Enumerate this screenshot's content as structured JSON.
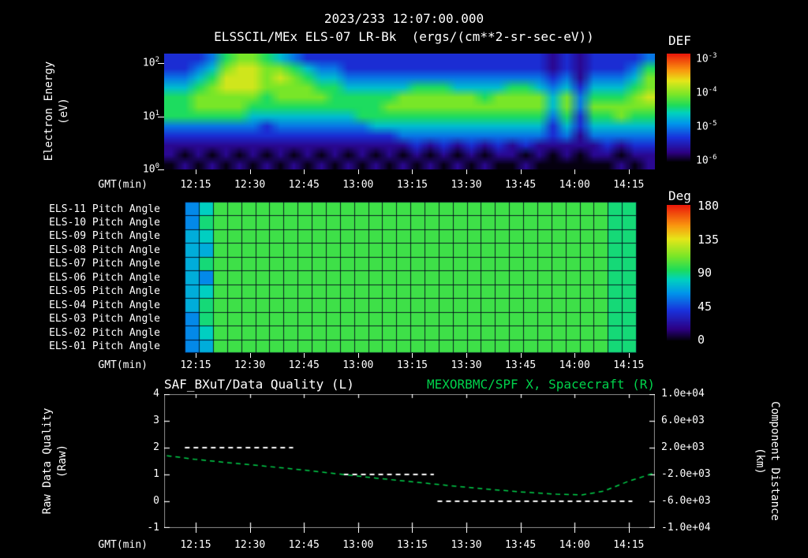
{
  "header": {
    "datetime": "2023/233 12:07:00.000",
    "title": "ELSSCIL/MEx ELS-07 LR-Bk  (ergs/(cm**2-sr-sec-eV))"
  },
  "colors": {
    "background": "#000000",
    "text": "#ffffff",
    "accent_green": "#00d24b"
  },
  "time_axis": {
    "label": "GMT(min)",
    "ticks": [
      "12:15",
      "12:30",
      "12:45",
      "13:00",
      "13:15",
      "13:30",
      "13:45",
      "14:00",
      "14:15"
    ],
    "start": "12:06",
    "end": "14:22"
  },
  "chart_data": [
    {
      "id": "electron_energy_spectrogram",
      "type": "heatmap",
      "instrument": "ELSSCIL/MEx ELS-07 LR-Bk",
      "units": "ergs/(cm**2-sr-sec-eV)",
      "ylabel_lines": [
        "Electron Energy",
        "(eV)"
      ],
      "y_scale": "log",
      "y_range_eV": [
        1,
        150
      ],
      "y_ticks": [
        {
          "base": "10",
          "exp": "2"
        },
        {
          "base": "10",
          "exp": "1"
        },
        {
          "base": "10",
          "exp": "0"
        }
      ],
      "colorbar": {
        "label": "DEF",
        "ticks": [
          {
            "base": "10",
            "exp": "-3"
          },
          {
            "base": "10",
            "exp": "-4"
          },
          {
            "base": "10",
            "exp": "-5"
          },
          {
            "base": "10",
            "exp": "-6"
          }
        ],
        "range_log10": [
          -6,
          -3
        ]
      },
      "value_encoding": "each string = one time column (12:06 to 14:22); chars run top (100 eV) to bottom (1 eV); digit 0-9 = relative log flux",
      "values": [
        "223455532110",
        "223455532101",
        "234566532110",
        "345666532101",
        "567766532110",
        "677766532101",
        "677765432110",
        "566655422101",
        "467665432110",
        "356665432101",
        "245665432110",
        "234565432101",
        "234555432110",
        "223455432101",
        "223455532110",
        "223455542101",
        "223456542110",
        "223466543101",
        "223566543210",
        "223566543101",
        "223566543210",
        "223466543101",
        "223466543210",
        "223456543101",
        "223466543210",
        "223566543110",
        "223566543201",
        "223466543110",
        "112344322100",
        "223466543110",
        "111233221100",
        "223456543110",
        "223456543210",
        "223456643101",
        "234566543210",
        "356676543211"
      ]
    },
    {
      "id": "pitch_angle_panels",
      "type": "heatmap",
      "row_labels": [
        "ELS-11 Pitch Angle",
        "ELS-10 Pitch Angle",
        "ELS-09 Pitch Angle",
        "ELS-08 Pitch Angle",
        "ELS-07 Pitch Angle",
        "ELS-06 Pitch Angle",
        "ELS-05 Pitch Angle",
        "ELS-04 Pitch Angle",
        "ELS-03 Pitch Angle",
        "ELS-02 Pitch Angle",
        "ELS-01 Pitch Angle"
      ],
      "colorbar": {
        "label": "Deg",
        "ticks": [
          "180",
          "135",
          "90",
          "45",
          "0"
        ],
        "range_deg": [
          0,
          180
        ]
      },
      "data_start": "12:12",
      "data_end": "14:17",
      "value_encoding": "char in '0123456789ABCDEFGHI' x10 = pitch angle in degrees; 32 time columns per row",
      "rows": [
        "68AAAAAAAAAAAAAAAAAAAAAAAAAAAA99",
        "69AAAAAAAAAAAAAAAAAAAAAAAAAAAA99",
        "78AAAAAAAAAAAAAAAAAAAAAAAAAAAA99",
        "77AAAAAAAAAAAAAAAAAAAAAAAAAAAA99",
        "79AAAAAAAAAAAAAAAAAAAAAAAAAAAA99",
        "76AAAAAAAAAAAAAAAAAAAAAAAAAAAA99",
        "78AAAAAAAAAAAAAAAAAAAAAAAAAAAA99",
        "79AAAAAAAAAAAAAAAAAAAAAAAAAAAA99",
        "69AAAAAAAAAAAAAAAAAAAAAAAAAAAA99",
        "68AAAAAAAAAAAAAAAAAAAAAAAAAAAA99",
        "67AAAAAAAAAAAAAAAAAAAAAAAAAAAA99"
      ]
    },
    {
      "id": "quality_and_spacecraft_distance",
      "type": "line",
      "title_left": "SAF_BXuT/Data Quality (L)",
      "title_right": "MEXORBMC/SPF X, Spacecraft (R)",
      "ylabel_left_lines": [
        "Raw Data Quality",
        "(Raw)"
      ],
      "ylabel_right_lines": [
        "Component Distance",
        "(km)"
      ],
      "yleft_ticks": [
        "4",
        "3",
        "2",
        "1",
        "0",
        "-1"
      ],
      "yleft_range": [
        -1,
        4
      ],
      "yright_ticks": [
        "1.0e+04",
        "6.0e+03",
        "2.0e+03",
        "-2.0e+03",
        "-6.0e+03",
        "-1.0e+04"
      ],
      "yright_range": [
        -10000,
        10000
      ],
      "series": [
        {
          "name": "SAF_BXuT/Data Quality",
          "axis": "left",
          "color": "#ffffff",
          "style": "dashed",
          "segments": [
            {
              "value": 2,
              "start": "12:12",
              "end": "12:42"
            },
            {
              "value": 1,
              "start": "12:56",
              "end": "13:21"
            },
            {
              "value": 0,
              "start": "13:22",
              "end": "14:16"
            }
          ]
        },
        {
          "name": "MEXORBMC/SPF X Spacecraft",
          "axis": "right",
          "color": "#00d24b",
          "style": "dashed",
          "points": [
            [
              "12:07",
              800
            ],
            [
              "12:15",
              250
            ],
            [
              "12:25",
              -300
            ],
            [
              "12:35",
              -800
            ],
            [
              "12:45",
              -1350
            ],
            [
              "12:55",
              -1950
            ],
            [
              "13:05",
              -2550
            ],
            [
              "13:15",
              -3100
            ],
            [
              "13:25",
              -3650
            ],
            [
              "13:35",
              -4150
            ],
            [
              "13:45",
              -4600
            ],
            [
              "13:55",
              -4950
            ],
            [
              "14:02",
              -5050
            ],
            [
              "14:08",
              -4500
            ],
            [
              "14:15",
              -3000
            ],
            [
              "14:22",
              -1800
            ]
          ]
        }
      ]
    }
  ]
}
